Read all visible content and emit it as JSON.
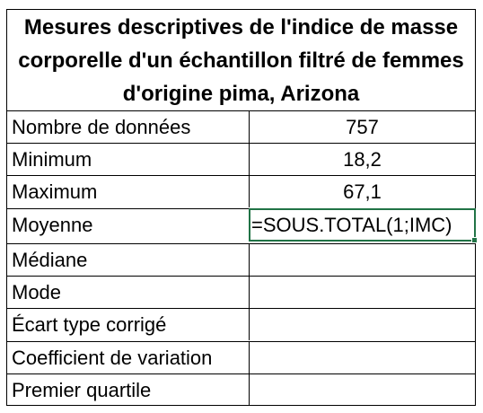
{
  "sheet": {
    "title": "Mesures descriptives de l'indice de masse corporelle d'un échantillon filtré de femmes d'origine pima, Arizona",
    "rows": [
      {
        "label": "Nombre de données",
        "value": "757"
      },
      {
        "label": "Minimum",
        "value": "18,2"
      },
      {
        "label": "Maximum",
        "value": "67,1"
      },
      {
        "label": "Moyenne",
        "value": "=SOUS.TOTAL(1;IMC)"
      },
      {
        "label": "Médiane",
        "value": ""
      },
      {
        "label": "Mode",
        "value": ""
      },
      {
        "label": "Écart type corrigé",
        "value": ""
      },
      {
        "label": "Coefficient de variation",
        "value": ""
      },
      {
        "label": "Premier quartile",
        "value": ""
      }
    ],
    "active_cell_color": "#217346"
  }
}
